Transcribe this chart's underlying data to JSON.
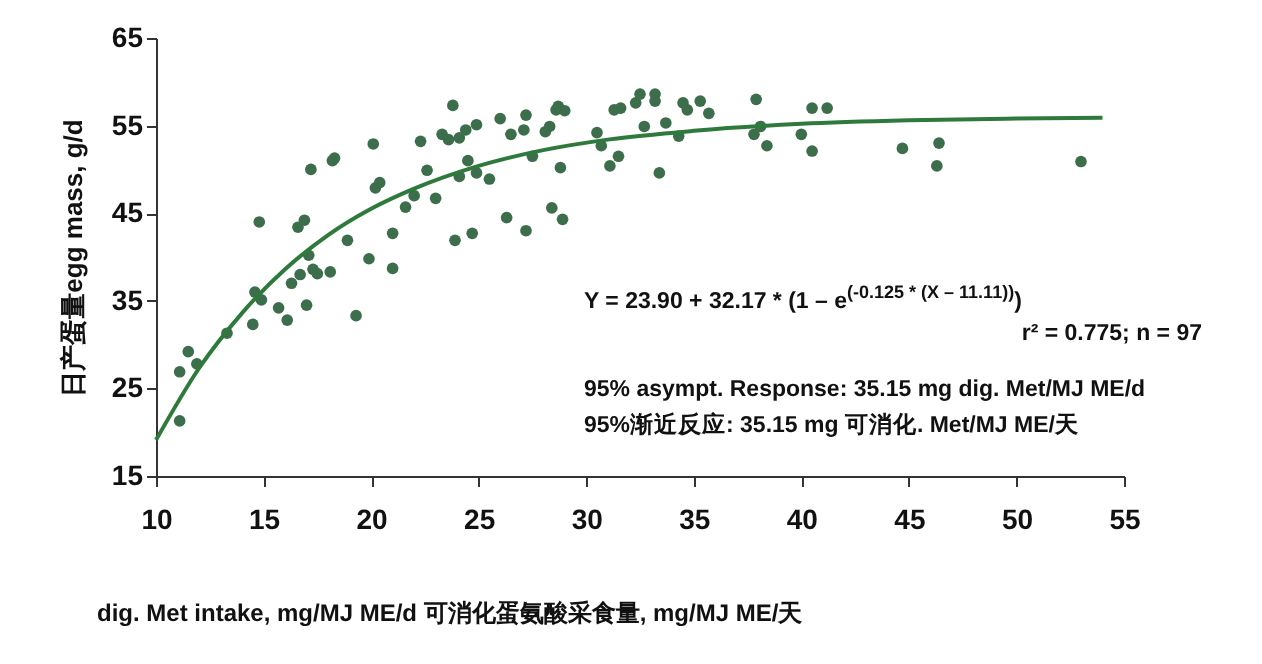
{
  "chart_data": {
    "type": "scatter",
    "xlabel": "dig. Met intake, mg/MJ ME/d 可消化蛋氨酸采食量, mg/MJ ME/天",
    "ylabel": "日产蛋量egg mass, g/d",
    "xlim": [
      10,
      55
    ],
    "xticks": [
      10,
      15,
      20,
      25,
      30,
      35,
      40,
      45,
      50,
      55
    ],
    "ylim": [
      15,
      65
    ],
    "yticks": [
      15,
      25,
      35,
      45,
      55,
      65
    ],
    "grid": false,
    "annotations": [
      "Y = 23.90 + 32.17 * (1 – e$^{(-0.125 * (X – 11.11))}$)",
      "r² = 0.775;  n = 97",
      "95% asympt. Response: 35.15 mg dig. Met/MJ ME/d",
      "95%渐近反应: 35.15 mg 可消化. Met/MJ ME/天"
    ],
    "series": [
      {
        "marker": "circle",
        "color": "#3c6e4c",
        "x": [
          11.1,
          11.1,
          11.5,
          11.9,
          13.3,
          14.5,
          14.6,
          14.9,
          14.8,
          15.7,
          16.1,
          16.3,
          16.7,
          16.6,
          16.9,
          17.0,
          17.1,
          17.2,
          17.3,
          17.5,
          18.1,
          18.2,
          18.3,
          18.9,
          19.3,
          19.9,
          20.1,
          20.2,
          20.4,
          21.0,
          21.0,
          21.6,
          22.0,
          22.3,
          22.6,
          23.0,
          23.3,
          23.6,
          23.8,
          23.9,
          24.1,
          24.1,
          24.4,
          24.5,
          24.7,
          24.9,
          24.9,
          25.5,
          26.0,
          26.3,
          26.5,
          27.2,
          27.1,
          27.2,
          27.5,
          28.1,
          28.3,
          28.4,
          28.6,
          28.7,
          28.8,
          28.9,
          29.0,
          30.5,
          30.7,
          31.1,
          31.3,
          31.6,
          31.5,
          32.3,
          32.5,
          33.2,
          33.2,
          32.7,
          33.4,
          33.7,
          34.3,
          34.5,
          34.7,
          35.3,
          35.7,
          37.9,
          38.1,
          37.8,
          38.4,
          40.0,
          40.5,
          41.2,
          40.5,
          44.7,
          46.4,
          46.3,
          53.0
        ],
        "values": [
          21.3,
          26.9,
          29.2,
          27.8,
          31.3,
          32.3,
          36.0,
          35.1,
          44.0,
          34.2,
          32.8,
          37.0,
          38.0,
          43.4,
          44.2,
          34.5,
          40.2,
          50.0,
          38.6,
          38.1,
          38.3,
          51.0,
          51.3,
          41.9,
          33.3,
          39.8,
          52.9,
          47.9,
          48.5,
          42.7,
          38.7,
          45.7,
          47.0,
          53.2,
          49.9,
          46.7,
          54.0,
          53.4,
          57.3,
          41.9,
          49.2,
          53.6,
          54.5,
          51.0,
          42.7,
          55.1,
          49.6,
          48.9,
          55.8,
          44.5,
          54.0,
          56.2,
          54.5,
          43.0,
          51.5,
          54.3,
          54.9,
          45.6,
          56.8,
          57.2,
          50.2,
          44.3,
          56.7,
          54.2,
          52.7,
          50.4,
          56.8,
          57.0,
          51.5,
          57.6,
          58.6,
          58.6,
          57.8,
          54.9,
          49.6,
          55.3,
          53.8,
          57.6,
          56.8,
          57.8,
          56.4,
          58.0,
          54.9,
          54.0,
          52.7,
          54.0,
          57.0,
          57.0,
          52.1,
          52.4,
          53.0,
          50.4,
          50.9
        ]
      },
      {
        "type": "line",
        "color": "#2e7a3c",
        "x": [
          10,
          12,
          14,
          16,
          18,
          20,
          22,
          25,
          28,
          31,
          35,
          40,
          45,
          50,
          54
        ],
        "values": [
          19.1,
          27.3,
          33.6,
          38.6,
          42.5,
          45.5,
          47.8,
          50.4,
          52.2,
          53.4,
          54.4,
          55.2,
          55.6,
          55.8,
          55.9
        ]
      }
    ]
  }
}
